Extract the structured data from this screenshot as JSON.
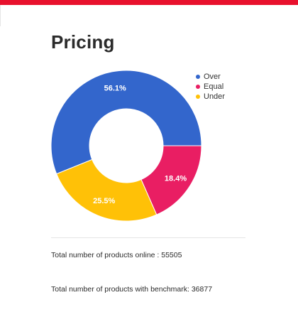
{
  "page": {
    "title": "Pricing",
    "accent_color": "#e8112d"
  },
  "chart_data": {
    "type": "pie",
    "donut": true,
    "categories": [
      "Over",
      "Equal",
      "Under"
    ],
    "values": [
      56.1,
      18.4,
      25.5
    ],
    "value_labels": [
      "56.1%",
      "18.4%",
      "25.5%"
    ],
    "colors": [
      "#3366cc",
      "#e91e63",
      "#ffc107"
    ],
    "legend_position": "top-right"
  },
  "stats": {
    "online": "Total number of products online : 55505",
    "benchmark": "Total number of products with benchmark: 36877"
  }
}
